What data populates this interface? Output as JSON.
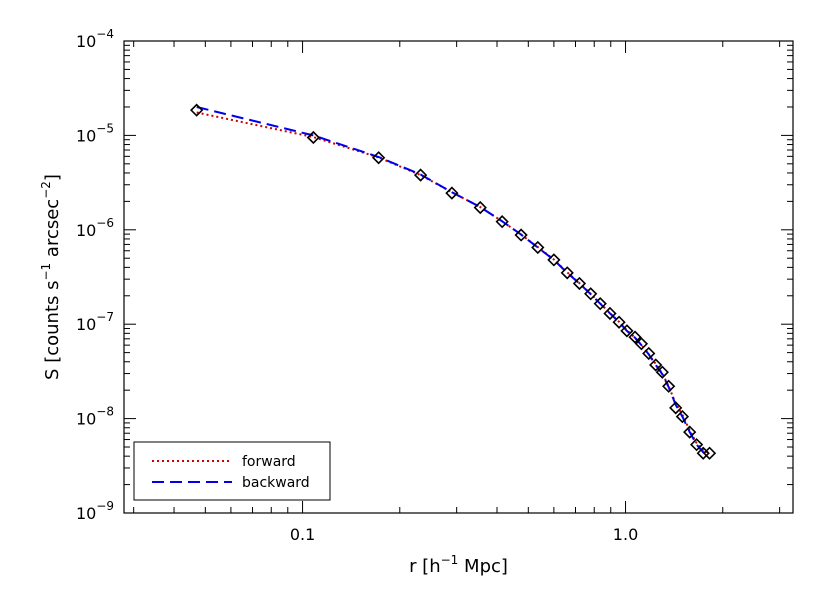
{
  "chart_data": {
    "type": "scatter",
    "title": "",
    "xlabel": "r [h",
    "xlabel_sup": "−1",
    "xlabel_end": " Mpc]",
    "ylabel": "S [counts s",
    "ylabel_sup1": "−1",
    "ylabel_mid": " arcsec",
    "ylabel_sup2": "−2",
    "ylabel_end": "]",
    "xscale": "log",
    "yscale": "log",
    "xlim": [
      0.028,
      3.3
    ],
    "ylim": [
      1e-09,
      0.0001
    ],
    "x_ticks": [
      0.1,
      1.0
    ],
    "x_tick_labels": [
      "0.1",
      "1.0"
    ],
    "y_ticks": [
      {
        "value": 1e-09,
        "base": "10",
        "exp": "−9"
      },
      {
        "value": 1e-08,
        "base": "10",
        "exp": "−8"
      },
      {
        "value": 1e-07,
        "base": "10",
        "exp": "−7"
      },
      {
        "value": 1e-06,
        "base": "10",
        "exp": "−6"
      },
      {
        "value": 1e-05,
        "base": "10",
        "exp": "−5"
      },
      {
        "value": 0.0001,
        "base": "10",
        "exp": "−4"
      }
    ],
    "grid": false,
    "legend_position": "bottom-left",
    "points": {
      "x": [
        0.047,
        0.108,
        0.172,
        0.232,
        0.29,
        0.355,
        0.415,
        0.475,
        0.535,
        0.6,
        0.66,
        0.72,
        0.78,
        0.835,
        0.895,
        0.955,
        1.01,
        1.07,
        1.12,
        1.18,
        1.24,
        1.3,
        1.36,
        1.43,
        1.5,
        1.58,
        1.66,
        1.74,
        1.82
      ],
      "y": [
        1.85e-05,
        9.5e-06,
        5.8e-06,
        3.8e-06,
        2.45e-06,
        1.72e-06,
        1.22e-06,
        8.8e-07,
        6.5e-07,
        4.8e-07,
        3.5e-07,
        2.7e-07,
        2.1e-07,
        1.65e-07,
        1.3e-07,
        1.05e-07,
        8.5e-08,
        7.3e-08,
        6.2e-08,
        4.9e-08,
        3.7e-08,
        3.1e-08,
        2.2e-08,
        1.3e-08,
        1.05e-08,
        7.2e-09,
        5.3e-09,
        4.3e-09,
        4.3e-09
      ]
    },
    "series": [
      {
        "name": "forward",
        "style": "dotted",
        "color": "#cc0000",
        "x": [
          0.047,
          0.108,
          0.172,
          0.232,
          0.29,
          0.355,
          0.415,
          0.475,
          0.535,
          0.6,
          0.66,
          0.72,
          0.78,
          0.835,
          0.895,
          0.955,
          1.01,
          1.07,
          1.12,
          1.18,
          1.24,
          1.3,
          1.36,
          1.43,
          1.5,
          1.58,
          1.66,
          1.74,
          1.82
        ],
        "y": [
          1.75e-05,
          9.6e-06,
          5.85e-06,
          3.8e-06,
          2.5e-06,
          1.74e-06,
          1.23e-06,
          8.9e-07,
          6.55e-07,
          4.85e-07,
          3.55e-07,
          2.72e-07,
          2.1e-07,
          1.66e-07,
          1.31e-07,
          1.06e-07,
          8.6e-08,
          7.2e-08,
          6e-08,
          4.8e-08,
          3.8e-08,
          3e-08,
          2.2e-08,
          1.45e-08,
          1.1e-08,
          7.5e-09,
          5.5e-09,
          4.6e-09,
          4.3e-09
        ]
      },
      {
        "name": "backward",
        "style": "dashed",
        "color": "#0000ee",
        "x": [
          0.047,
          0.108,
          0.172,
          0.232,
          0.29,
          0.355,
          0.415,
          0.475,
          0.535,
          0.6,
          0.66,
          0.72,
          0.78,
          0.835,
          0.895,
          0.955,
          1.01,
          1.07,
          1.12,
          1.18,
          1.24,
          1.3,
          1.36,
          1.43,
          1.5,
          1.58,
          1.66,
          1.74,
          1.82
        ],
        "y": [
          2e-05,
          1e-05,
          5.9e-06,
          3.85e-06,
          2.5e-06,
          1.74e-06,
          1.23e-06,
          8.9e-07,
          6.5e-07,
          4.8e-07,
          3.5e-07,
          2.7e-07,
          2.08e-07,
          1.65e-07,
          1.3e-07,
          1.05e-07,
          8.5e-08,
          7.2e-08,
          6e-08,
          4.8e-08,
          3.7e-08,
          2.95e-08,
          2.15e-08,
          1.4e-08,
          1.05e-08,
          7.2e-09,
          5.3e-09,
          4.4e-09,
          4.3e-09
        ]
      }
    ],
    "legend": {
      "items": [
        {
          "label": "forward",
          "style": "dotted",
          "color": "#cc0000"
        },
        {
          "label": "backward",
          "style": "dashed",
          "color": "#0000ee"
        }
      ]
    }
  }
}
